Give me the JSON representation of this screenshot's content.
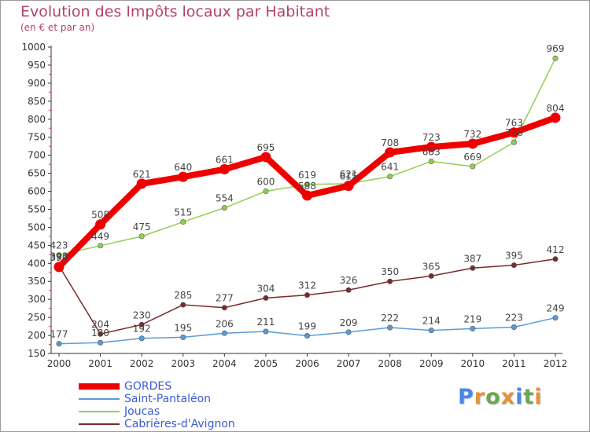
{
  "chart_data": {
    "type": "line",
    "title": "Evolution des Impôts locaux par Habitant",
    "subtitle": "(en € et par an)",
    "xlabel": "",
    "ylabel": "",
    "categories": [
      "2000",
      "2001",
      "2002",
      "2003",
      "2004",
      "2005",
      "2006",
      "2007",
      "2008",
      "2009",
      "2010",
      "2011",
      "2012"
    ],
    "ylim": [
      150,
      1000
    ],
    "yticks": [
      150,
      200,
      250,
      300,
      350,
      400,
      450,
      500,
      550,
      600,
      650,
      700,
      750,
      800,
      850,
      900,
      950,
      1000
    ],
    "grid": false,
    "legend_position": "bottom-left",
    "series": [
      {
        "name": "GORDES",
        "color": "#ee0000",
        "values": [
          390,
          508,
          621,
          640,
          661,
          695,
          588,
          615,
          708,
          723,
          732,
          763,
          804
        ]
      },
      {
        "name": "Saint-Pantaléon",
        "color": "#5b9bd5",
        "values": [
          177,
          180,
          192,
          195,
          206,
          211,
          199,
          209,
          222,
          214,
          219,
          223,
          249
        ]
      },
      {
        "name": "Joucas",
        "color": "#92d050",
        "values": [
          423,
          449,
          475,
          515,
          554,
          600,
          619,
          621,
          641,
          683,
          669,
          736,
          969
        ]
      },
      {
        "name": "Cabrières-d'Avignon",
        "color": "#7b2a2a",
        "values": [
          393,
          204,
          230,
          285,
          277,
          304,
          312,
          326,
          350,
          365,
          387,
          395,
          412
        ]
      }
    ]
  },
  "brand": {
    "letters": [
      "P",
      "r",
      "o",
      "x",
      "i",
      "t",
      "i"
    ],
    "colors": [
      "#4a86e8",
      "#e69138",
      "#6aa84f",
      "#e69138",
      "#4a86e8",
      "#6aa84f",
      "#e69138"
    ]
  }
}
